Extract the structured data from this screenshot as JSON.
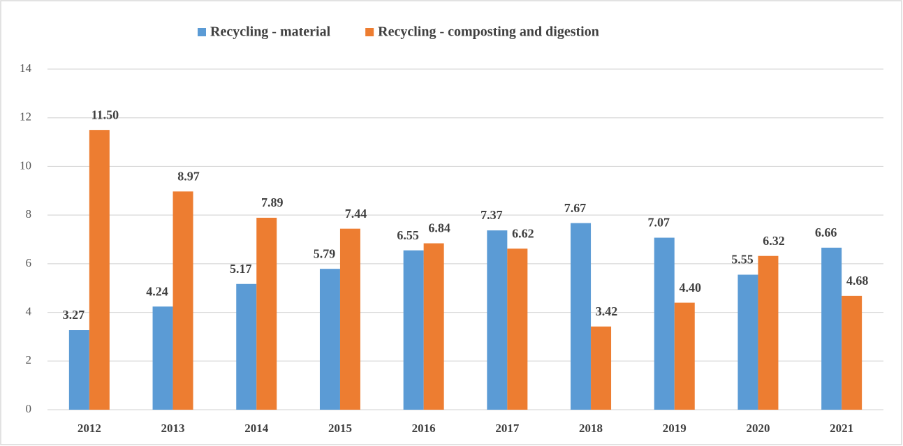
{
  "chart_data": {
    "type": "bar",
    "categories": [
      "2012",
      "2013",
      "2014",
      "2015",
      "2016",
      "2017",
      "2018",
      "2019",
      "2020",
      "2021"
    ],
    "series": [
      {
        "name": "Recycling - material",
        "color": "#5b9bd5",
        "values": [
          3.27,
          4.24,
          5.17,
          5.79,
          6.55,
          7.37,
          7.67,
          7.07,
          5.55,
          6.66
        ],
        "value_labels": [
          "3.27",
          "4.24",
          "5.17",
          "5.79",
          "6.55",
          "7.37",
          "7.67",
          "7.07",
          "5.55",
          "6.66"
        ]
      },
      {
        "name": "Recycling - composting and digestion",
        "color": "#ed7d31",
        "values": [
          11.5,
          8.97,
          7.89,
          7.44,
          6.84,
          6.62,
          3.42,
          4.4,
          6.32,
          4.68
        ],
        "value_labels": [
          "11.50",
          "8.97",
          "7.89",
          "7.44",
          "6.84",
          "6.62",
          "3.42",
          "4.40",
          "6.32",
          "4.68"
        ]
      }
    ],
    "ylim": [
      0,
      14
    ],
    "yticks": [
      0,
      2,
      4,
      6,
      8,
      10,
      12,
      14
    ],
    "grid": true,
    "legend": "top"
  }
}
